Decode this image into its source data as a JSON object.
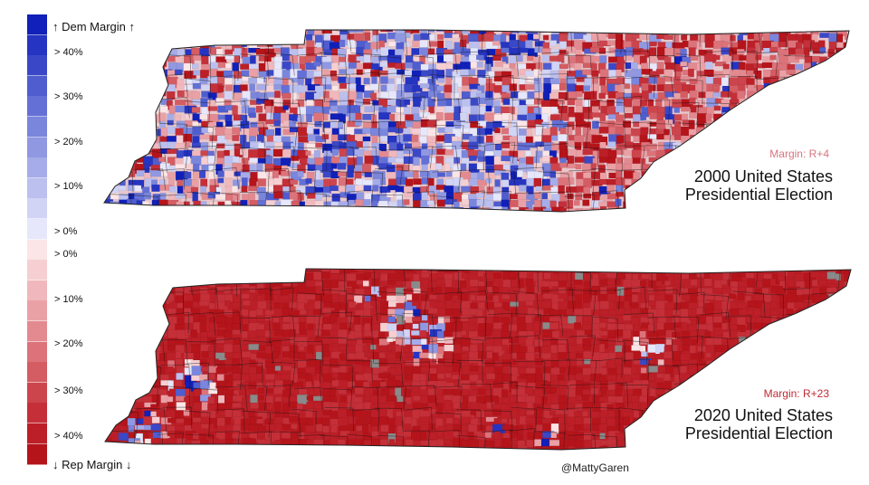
{
  "legend": {
    "top_label": "↑ Dem Margin ↑",
    "bottom_label": "↓ Rep Margin ↓",
    "dem_colors": [
      "#1020b8",
      "#2634c2",
      "#3a48c8",
      "#4f5dcf",
      "#6470d6",
      "#7a85dc",
      "#9098e2",
      "#a6ace8",
      "#bcc0ef",
      "#d2d4f5",
      "#e6e7fb"
    ],
    "rep_colors": [
      "#fbe5e6",
      "#f6cfd2",
      "#f0b8bc",
      "#eaa1a6",
      "#e38a90",
      "#dc737a",
      "#d45c63",
      "#cc454d",
      "#c42f38",
      "#bc1f27",
      "#b5141b"
    ],
    "dem_tick_labels": [
      "> 40%",
      "> 30%",
      "> 20%",
      "> 10%",
      "> 0%"
    ],
    "rep_tick_labels": [
      "> 0%",
      "> 10%",
      "> 20%",
      "> 30%",
      "> 40%"
    ]
  },
  "maps": [
    {
      "year": "2000",
      "title_line1": "2000 United States",
      "title_line2": "Presidential Election",
      "margin": "Margin: R+4",
      "margin_color": "#d8747f"
    },
    {
      "year": "2020",
      "title_line1": "2020 United States",
      "title_line2": "Presidential Election",
      "margin": "Margin: R+23",
      "margin_color": "#bf2a33"
    }
  ],
  "credit": "@MattyGaren"
}
